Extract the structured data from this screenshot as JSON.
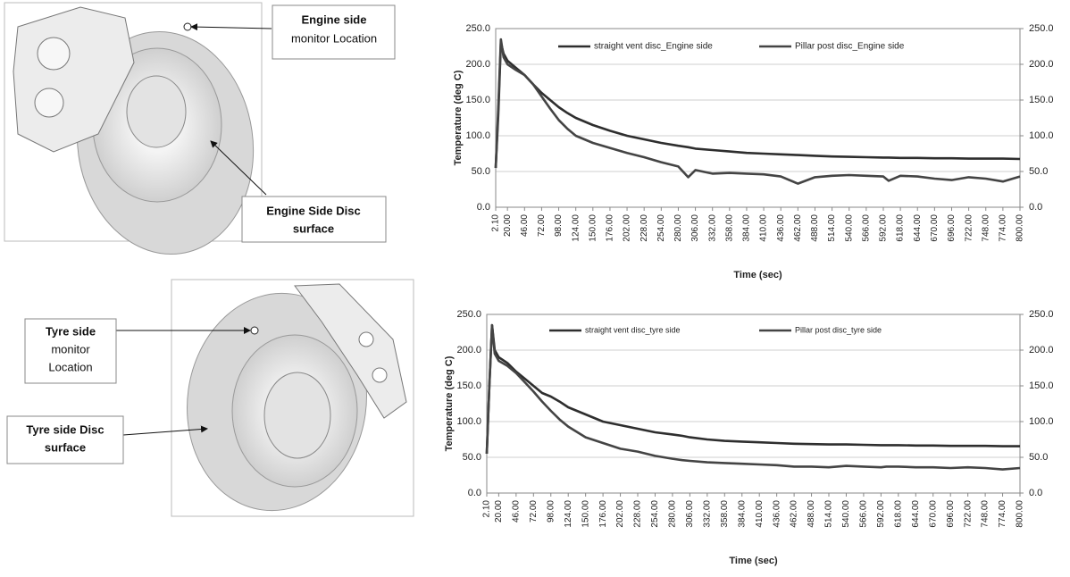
{
  "callouts": [
    {
      "lines": [
        "Engine side",
        "monitor Location"
      ]
    },
    {
      "lines": [
        "Engine Side Disc",
        "surface"
      ]
    },
    {
      "lines": [
        "Tyre side",
        "monitor",
        "Location"
      ]
    },
    {
      "lines": [
        "Tyre side Disc",
        "surface"
      ]
    }
  ],
  "chart_data": [
    {
      "type": "line",
      "y_label": "Temperature (deg C)",
      "x_label": "Time (sec)",
      "x": [
        2.1,
        6,
        10,
        14,
        20,
        33,
        46,
        59,
        72,
        85,
        98,
        111,
        124,
        150,
        176,
        202,
        228,
        254,
        280,
        295,
        306,
        332,
        358,
        384,
        410,
        436,
        462,
        488,
        514,
        540,
        566,
        592,
        600,
        618,
        644,
        670,
        696,
        722,
        748,
        774,
        800
      ],
      "xlim": [
        2.1,
        800
      ],
      "xticks": [
        {
          "value": 2.1,
          "label": "2.10"
        },
        {
          "value": 20,
          "label": "20.00"
        },
        {
          "value": 46,
          "label": "46.00"
        },
        {
          "value": 72,
          "label": "72.00"
        },
        {
          "value": 98,
          "label": "98.00"
        },
        {
          "value": 124,
          "label": "124.00"
        },
        {
          "value": 150,
          "label": "150.00"
        },
        {
          "value": 176,
          "label": "176.00"
        },
        {
          "value": 202,
          "label": "202.00"
        },
        {
          "value": 228,
          "label": "228.00"
        },
        {
          "value": 254,
          "label": "254.00"
        },
        {
          "value": 280,
          "label": "280.00"
        },
        {
          "value": 306,
          "label": "306.00"
        },
        {
          "value": 332,
          "label": "332.00"
        },
        {
          "value": 358,
          "label": "358.00"
        },
        {
          "value": 384,
          "label": "384.00"
        },
        {
          "value": 410,
          "label": "410.00"
        },
        {
          "value": 436,
          "label": "436.00"
        },
        {
          "value": 462,
          "label": "462.00"
        },
        {
          "value": 488,
          "label": "488.00"
        },
        {
          "value": 514,
          "label": "514.00"
        },
        {
          "value": 540,
          "label": "540.00"
        },
        {
          "value": 566,
          "label": "566.00"
        },
        {
          "value": 592,
          "label": "592.00"
        },
        {
          "value": 618,
          "label": "618.00"
        },
        {
          "value": 644,
          "label": "644.00"
        },
        {
          "value": 670,
          "label": "670.00"
        },
        {
          "value": 696,
          "label": "696.00"
        },
        {
          "value": 722,
          "label": "722.00"
        },
        {
          "value": 748,
          "label": "748.00"
        },
        {
          "value": 774,
          "label": "774.00"
        },
        {
          "value": 800,
          "label": "800.00"
        }
      ],
      "ylim": [
        0,
        250
      ],
      "yticks": [
        {
          "value": 0,
          "label": "0.0"
        },
        {
          "value": 50,
          "label": "50.0"
        },
        {
          "value": 100,
          "label": "100.0"
        },
        {
          "value": 150,
          "label": "150.0"
        },
        {
          "value": 200,
          "label": "200.0"
        },
        {
          "value": 250,
          "label": "250.0"
        }
      ],
      "y2lim": [
        0,
        250
      ],
      "y2ticks": [
        {
          "value": 0,
          "label": "0.0"
        },
        {
          "value": 50,
          "label": "50.0"
        },
        {
          "value": 100,
          "label": "100.0"
        },
        {
          "value": 150,
          "label": "150.0"
        },
        {
          "value": 200,
          "label": "200.0"
        },
        {
          "value": 250,
          "label": "250.0"
        }
      ],
      "grid": true,
      "series": [
        {
          "name": "straight vent disc_Engine side",
          "color": "#2e2e2e",
          "values": [
            55,
            130,
            230,
            215,
            205,
            195,
            185,
            172,
            160,
            150,
            140,
            132,
            125,
            115,
            107,
            100,
            95,
            90,
            86,
            84,
            82,
            80,
            78,
            76,
            75,
            74,
            73,
            72,
            71,
            70.5,
            70,
            69.5,
            69.5,
            69,
            69,
            68.5,
            68.5,
            68,
            68,
            68,
            67.5
          ]
        },
        {
          "name": "Pillar post disc_Engine side",
          "color": "#444444",
          "values": [
            55,
            140,
            235,
            210,
            200,
            192,
            185,
            172,
            155,
            138,
            122,
            110,
            100,
            90,
            83,
            76,
            70,
            63,
            57,
            42,
            52,
            47,
            48,
            47,
            46,
            43,
            33,
            42,
            44,
            45,
            44,
            43,
            37,
            44,
            43,
            40,
            38,
            42,
            40,
            36,
            43
          ]
        }
      ]
    },
    {
      "type": "line",
      "y_label": "Temperature (deg C)",
      "x_label": "Time (sec)",
      "x": [
        2.1,
        6,
        10,
        14,
        20,
        33,
        46,
        59,
        72,
        85,
        98,
        111,
        124,
        150,
        176,
        202,
        228,
        254,
        280,
        295,
        306,
        332,
        358,
        384,
        410,
        436,
        462,
        488,
        514,
        540,
        566,
        592,
        600,
        618,
        644,
        670,
        696,
        722,
        748,
        774,
        800
      ],
      "xlim": [
        2.1,
        800
      ],
      "xticks": [
        {
          "value": 2.1,
          "label": "2.10"
        },
        {
          "value": 20,
          "label": "20.00"
        },
        {
          "value": 46,
          "label": "46.00"
        },
        {
          "value": 72,
          "label": "72.00"
        },
        {
          "value": 98,
          "label": "98.00"
        },
        {
          "value": 124,
          "label": "124.00"
        },
        {
          "value": 150,
          "label": "150.00"
        },
        {
          "value": 176,
          "label": "176.00"
        },
        {
          "value": 202,
          "label": "202.00"
        },
        {
          "value": 228,
          "label": "228.00"
        },
        {
          "value": 254,
          "label": "254.00"
        },
        {
          "value": 280,
          "label": "280.00"
        },
        {
          "value": 306,
          "label": "306.00"
        },
        {
          "value": 332,
          "label": "332.00"
        },
        {
          "value": 358,
          "label": "358.00"
        },
        {
          "value": 384,
          "label": "384.00"
        },
        {
          "value": 410,
          "label": "410.00"
        },
        {
          "value": 436,
          "label": "436.00"
        },
        {
          "value": 462,
          "label": "462.00"
        },
        {
          "value": 488,
          "label": "488.00"
        },
        {
          "value": 514,
          "label": "514.00"
        },
        {
          "value": 540,
          "label": "540.00"
        },
        {
          "value": 566,
          "label": "566.00"
        },
        {
          "value": 592,
          "label": "592.00"
        },
        {
          "value": 618,
          "label": "618.00"
        },
        {
          "value": 644,
          "label": "644.00"
        },
        {
          "value": 670,
          "label": "670.00"
        },
        {
          "value": 696,
          "label": "696.00"
        },
        {
          "value": 722,
          "label": "722.00"
        },
        {
          "value": 748,
          "label": "748.00"
        },
        {
          "value": 774,
          "label": "774.00"
        },
        {
          "value": 800,
          "label": "800.00"
        }
      ],
      "ylim": [
        0,
        250
      ],
      "yticks": [
        {
          "value": 0,
          "label": "0.0"
        },
        {
          "value": 50,
          "label": "50.0"
        },
        {
          "value": 100,
          "label": "100.0"
        },
        {
          "value": 150,
          "label": "150.0"
        },
        {
          "value": 200,
          "label": "200.0"
        },
        {
          "value": 250,
          "label": "250.0"
        }
      ],
      "y2lim": [
        0,
        250
      ],
      "y2ticks": [
        {
          "value": 0,
          "label": "0.0"
        },
        {
          "value": 50,
          "label": "50.0"
        },
        {
          "value": 100,
          "label": "100.0"
        },
        {
          "value": 150,
          "label": "150.0"
        },
        {
          "value": 200,
          "label": "200.0"
        },
        {
          "value": 250,
          "label": "250.0"
        }
      ],
      "grid": true,
      "series": [
        {
          "name": "straight vent disc_tyre side",
          "color": "#2e2e2e",
          "values": [
            55,
            150,
            235,
            200,
            190,
            182,
            170,
            160,
            150,
            140,
            135,
            128,
            120,
            110,
            100,
            95,
            90,
            85,
            82,
            80,
            78,
            75,
            73,
            72,
            71,
            70,
            69,
            68.5,
            68,
            68,
            67.5,
            67,
            67,
            67,
            66.5,
            66.5,
            66,
            66,
            66,
            65.5,
            65.5
          ]
        },
        {
          "name": "Pillar post disc_tyre side",
          "color": "#444444",
          "values": [
            55,
            150,
            235,
            195,
            185,
            178,
            168,
            155,
            142,
            128,
            115,
            103,
            93,
            78,
            70,
            62,
            58,
            52,
            48,
            46,
            45,
            43,
            42,
            41,
            40,
            39,
            37,
            37,
            36,
            38,
            37,
            36,
            37,
            37,
            36,
            36,
            35,
            36,
            35,
            33,
            35
          ]
        }
      ]
    }
  ]
}
